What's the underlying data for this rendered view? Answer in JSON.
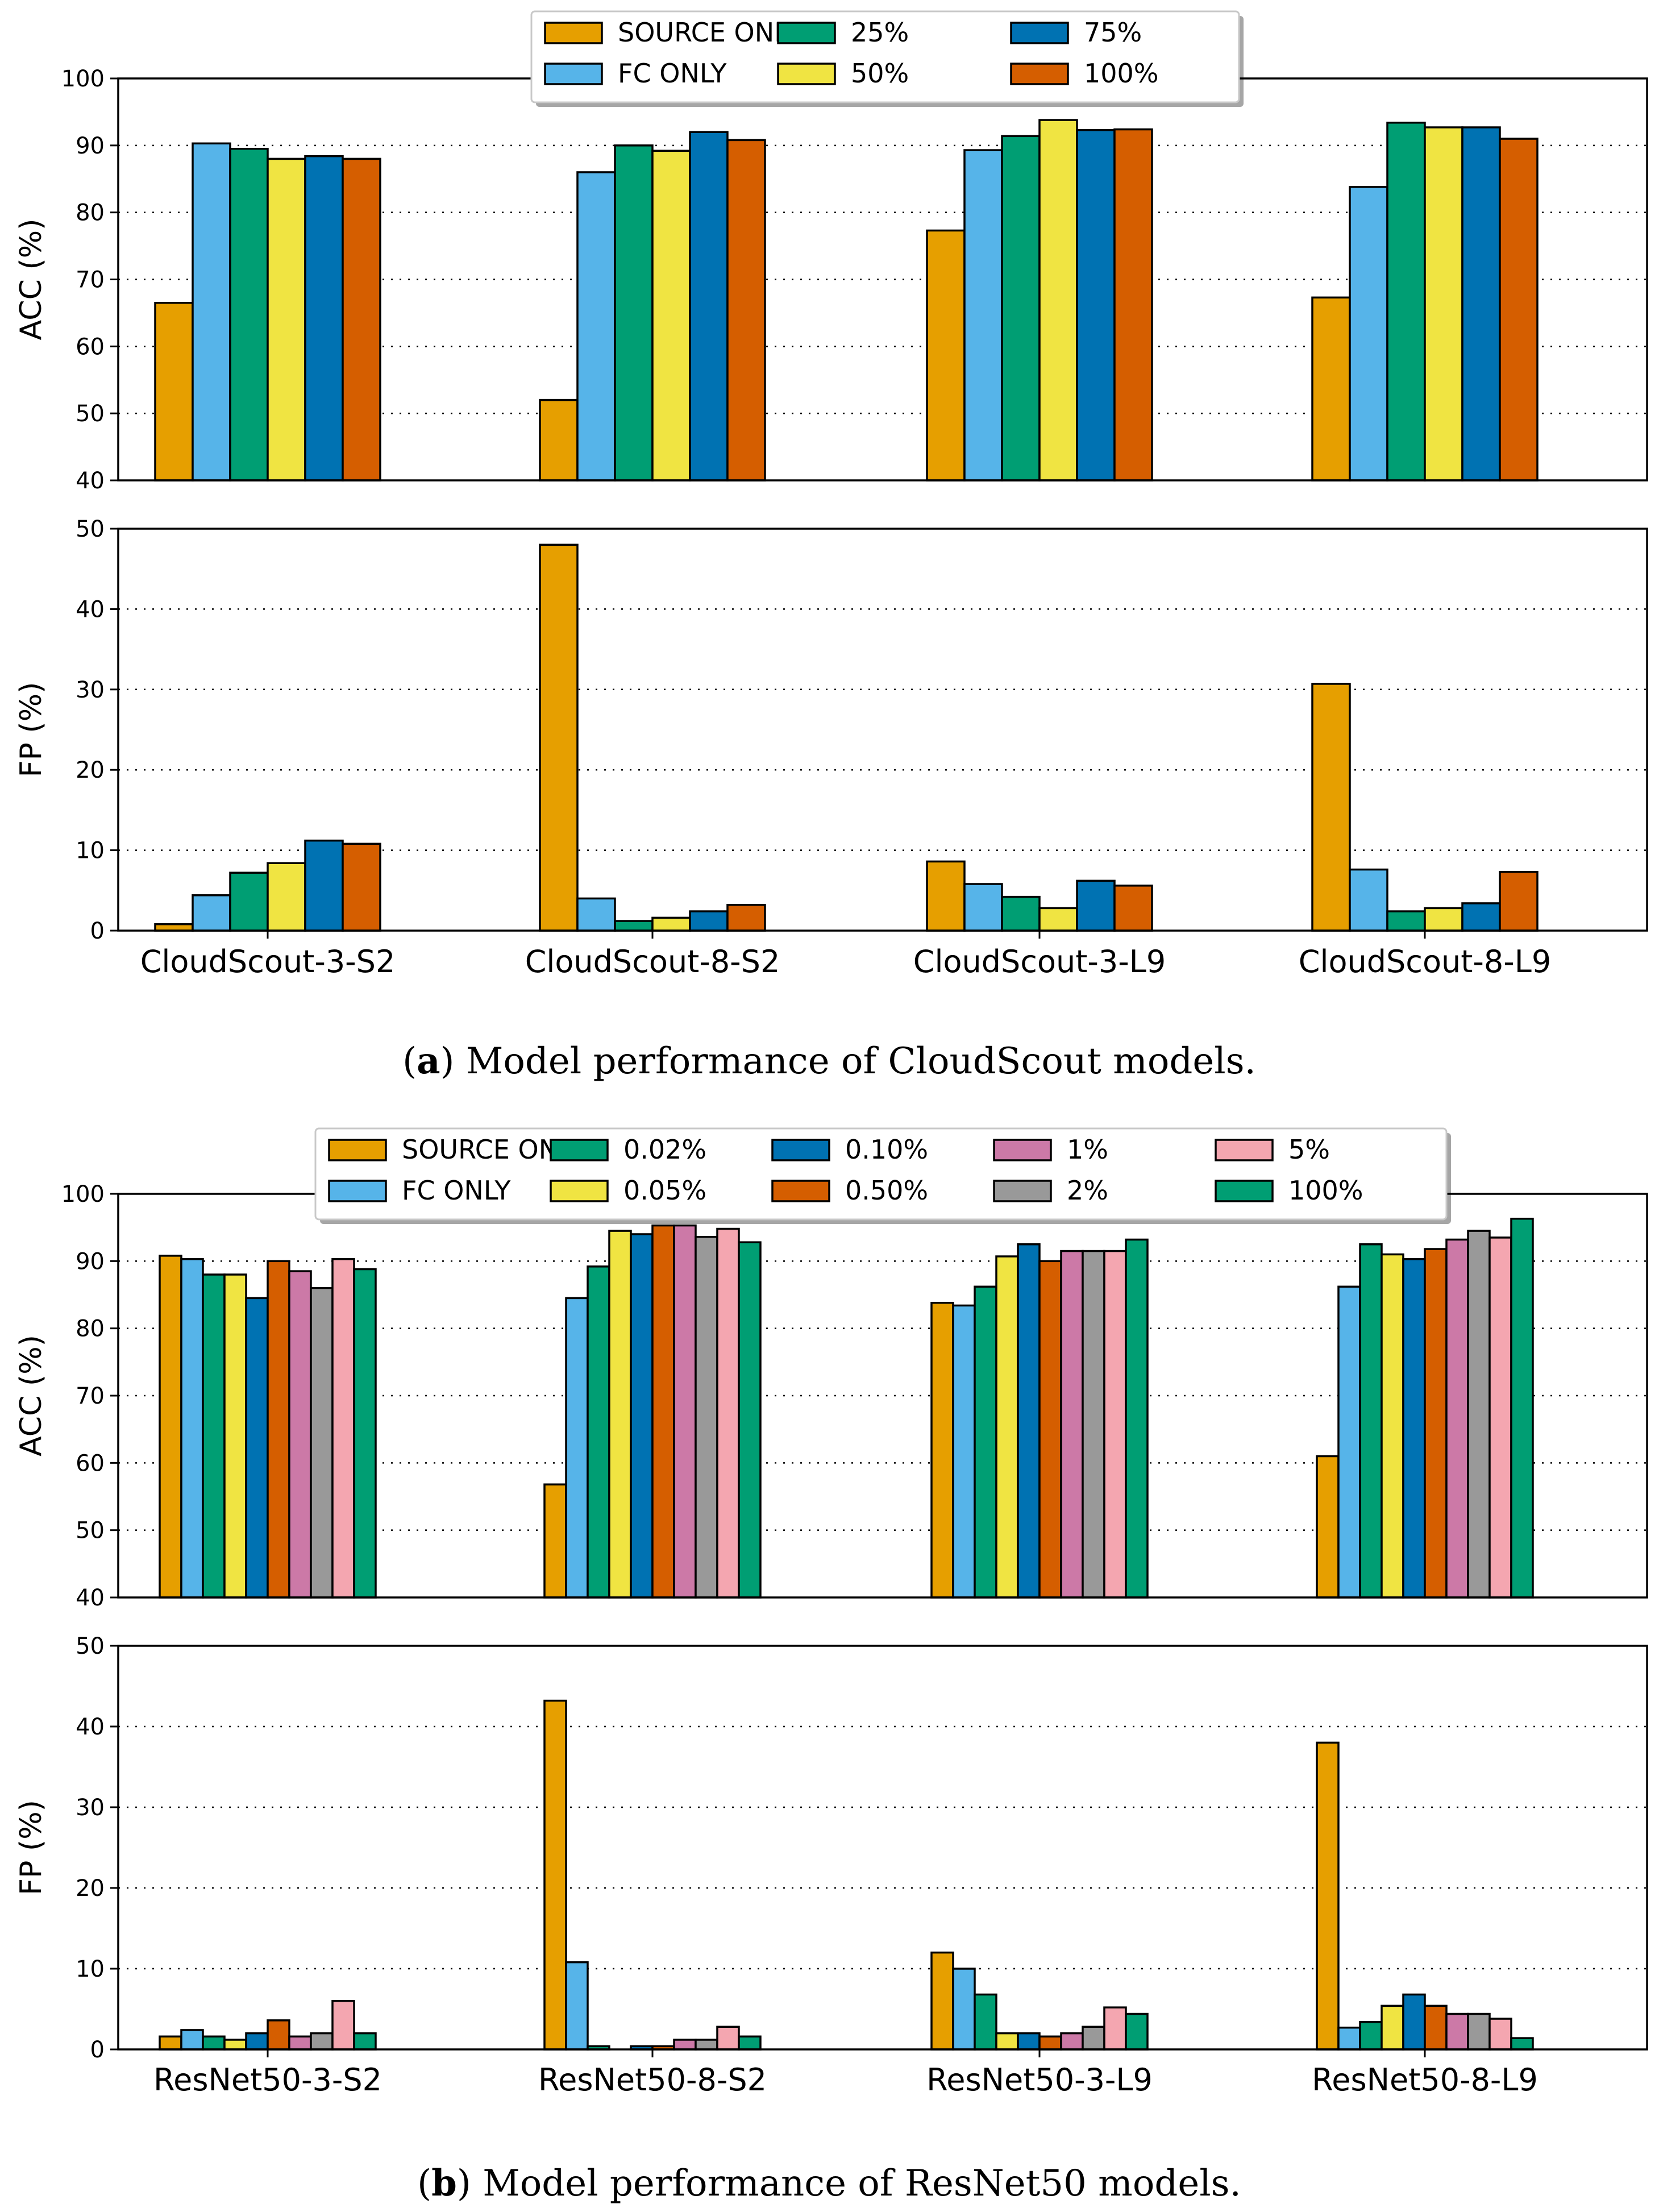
{
  "chart_data": [
    {
      "type": "bar",
      "metric": "acc",
      "group": "a",
      "ylabel": "ACC (%)",
      "ylim": [
        40,
        100
      ],
      "yticks": [
        "40",
        "50",
        "60",
        "70",
        "80",
        "90",
        "100"
      ],
      "grid": "y-dotted",
      "categories": [
        "CloudScout-3-S2",
        "CloudScout-8-S2",
        "CloudScout-3-L9",
        "CloudScout-8-L9"
      ],
      "series": [
        {
          "name": "SOURCE ONLY",
          "color": "#E69F00",
          "values": [
            66.5,
            52.0,
            77.3,
            67.3
          ]
        },
        {
          "name": "FC ONLY",
          "color": "#56B4E9",
          "values": [
            90.3,
            86.0,
            89.3,
            83.8
          ]
        },
        {
          "name": "25%",
          "color": "#009E73",
          "values": [
            89.5,
            90.0,
            91.4,
            93.4
          ]
        },
        {
          "name": "50%",
          "color": "#F0E442",
          "values": [
            88.0,
            89.2,
            93.8,
            92.7
          ]
        },
        {
          "name": "75%",
          "color": "#0072B2",
          "values": [
            88.4,
            92.0,
            92.3,
            92.7
          ]
        },
        {
          "name": "100%",
          "color": "#D55E00",
          "values": [
            88.0,
            90.8,
            92.4,
            91.0
          ]
        }
      ]
    },
    {
      "type": "bar",
      "metric": "fp",
      "group": "a",
      "ylabel": "FP (%)",
      "ylim": [
        0,
        50
      ],
      "yticks": [
        "0",
        "10",
        "20",
        "30",
        "40",
        "50"
      ],
      "grid": "y-dotted",
      "categories": [
        "CloudScout-3-S2",
        "CloudScout-8-S2",
        "CloudScout-3-L9",
        "CloudScout-8-L9"
      ],
      "series": [
        {
          "name": "SOURCE ONLY",
          "color": "#E69F00",
          "values": [
            0.8,
            48.0,
            8.6,
            30.7
          ]
        },
        {
          "name": "FC ONLY",
          "color": "#56B4E9",
          "values": [
            4.4,
            4.0,
            5.8,
            7.6
          ]
        },
        {
          "name": "25%",
          "color": "#009E73",
          "values": [
            7.2,
            1.2,
            4.2,
            2.4
          ]
        },
        {
          "name": "50%",
          "color": "#F0E442",
          "values": [
            8.4,
            1.6,
            2.8,
            2.8
          ]
        },
        {
          "name": "75%",
          "color": "#0072B2",
          "values": [
            11.2,
            2.4,
            6.2,
            3.4
          ]
        },
        {
          "name": "100%",
          "color": "#D55E00",
          "values": [
            10.8,
            3.2,
            5.6,
            7.3
          ]
        }
      ]
    },
    {
      "type": "bar",
      "metric": "acc",
      "group": "b",
      "ylabel": "ACC (%)",
      "ylim": [
        40,
        100
      ],
      "yticks": [
        "40",
        "50",
        "60",
        "70",
        "80",
        "90",
        "100"
      ],
      "grid": "y-dotted",
      "categories": [
        "ResNet50-3-S2",
        "ResNet50-8-S2",
        "ResNet50-3-L9",
        "ResNet50-8-L9"
      ],
      "series": [
        {
          "name": "SOURCE ONLY",
          "color": "#E69F00",
          "values": [
            90.8,
            56.8,
            83.8,
            61.0
          ]
        },
        {
          "name": "FC ONLY",
          "color": "#56B4E9",
          "values": [
            90.3,
            84.5,
            83.4,
            86.2
          ]
        },
        {
          "name": "0.02%",
          "color": "#009E73",
          "values": [
            88.0,
            89.2,
            86.2,
            92.5
          ]
        },
        {
          "name": "0.05%",
          "color": "#F0E442",
          "values": [
            88.0,
            94.5,
            90.7,
            91.0
          ]
        },
        {
          "name": "0.10%",
          "color": "#0072B2",
          "values": [
            84.5,
            94.0,
            92.5,
            90.3
          ]
        },
        {
          "name": "0.50%",
          "color": "#D55E00",
          "values": [
            90.0,
            95.3,
            90.0,
            91.8
          ]
        },
        {
          "name": "1%",
          "color": "#CC79A7",
          "values": [
            88.5,
            95.3,
            91.5,
            93.2
          ]
        },
        {
          "name": "2%",
          "color": "#999999",
          "values": [
            86.0,
            93.6,
            91.5,
            94.5
          ]
        },
        {
          "name": "5%",
          "color": "#F4A6B0",
          "values": [
            90.3,
            94.8,
            91.5,
            93.5
          ]
        },
        {
          "name": "100%",
          "color": "#009E73",
          "values": [
            88.8,
            92.8,
            93.2,
            96.3
          ]
        }
      ]
    },
    {
      "type": "bar",
      "metric": "fp",
      "group": "b",
      "ylabel": "FP (%)",
      "ylim": [
        0,
        50
      ],
      "yticks": [
        "0",
        "10",
        "20",
        "30",
        "40",
        "50"
      ],
      "grid": "y-dotted",
      "categories": [
        "ResNet50-3-S2",
        "ResNet50-8-S2",
        "ResNet50-3-L9",
        "ResNet50-8-L9"
      ],
      "series": [
        {
          "name": "SOURCE ONLY",
          "color": "#E69F00",
          "values": [
            1.6,
            43.2,
            12.0,
            38.0
          ]
        },
        {
          "name": "FC ONLY",
          "color": "#56B4E9",
          "values": [
            2.4,
            10.8,
            10.0,
            2.7
          ]
        },
        {
          "name": "0.02%",
          "color": "#009E73",
          "values": [
            1.6,
            0.4,
            6.8,
            3.4
          ]
        },
        {
          "name": "0.05%",
          "color": "#F0E442",
          "values": [
            1.2,
            0.0,
            2.0,
            5.4
          ]
        },
        {
          "name": "0.10%",
          "color": "#0072B2",
          "values": [
            2.0,
            0.4,
            2.0,
            6.8
          ]
        },
        {
          "name": "0.50%",
          "color": "#D55E00",
          "values": [
            3.6,
            0.4,
            1.6,
            5.4
          ]
        },
        {
          "name": "1%",
          "color": "#CC79A7",
          "values": [
            1.6,
            1.2,
            2.0,
            4.4
          ]
        },
        {
          "name": "2%",
          "color": "#999999",
          "values": [
            2.0,
            1.2,
            2.8,
            4.4
          ]
        },
        {
          "name": "5%",
          "color": "#F4A6B0",
          "values": [
            6.0,
            2.8,
            5.2,
            3.8
          ]
        },
        {
          "name": "100%",
          "color": "#009E73",
          "values": [
            2.0,
            1.6,
            4.4,
            1.4
          ]
        }
      ]
    }
  ],
  "captions": {
    "a": {
      "label": "a",
      "text": " Model performance of CloudScout models."
    },
    "b": {
      "label": "b",
      "text": " Model performance of ResNet50 models."
    }
  }
}
